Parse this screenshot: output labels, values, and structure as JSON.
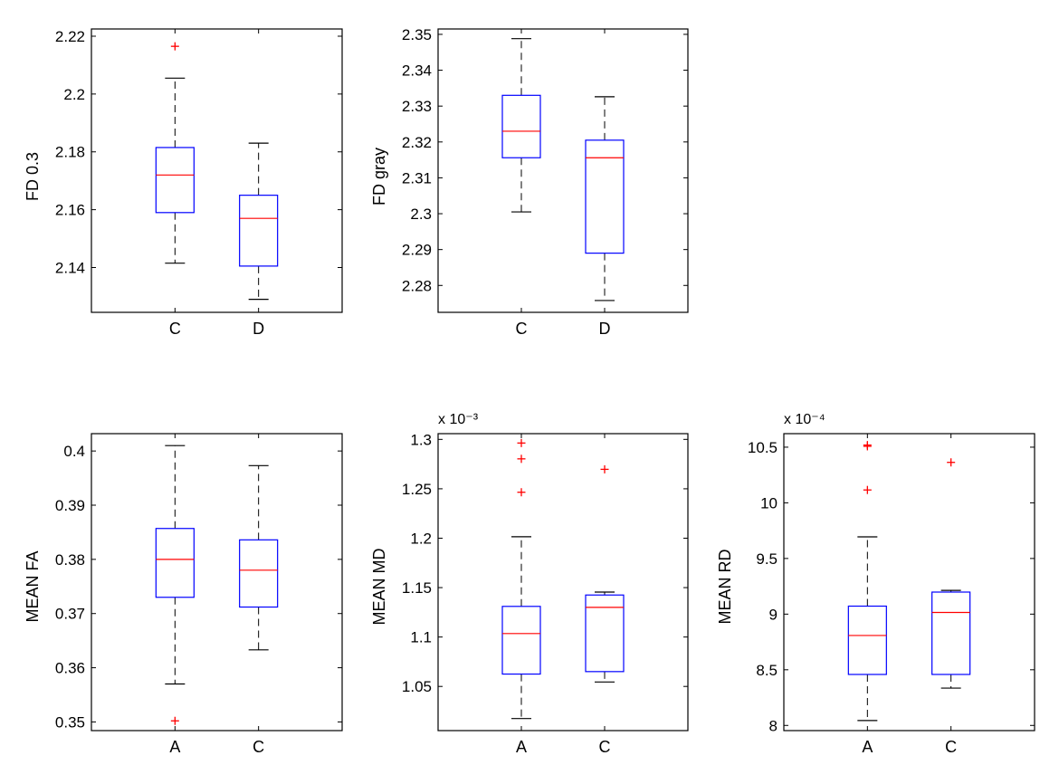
{
  "figure": {
    "background": "#ffffff"
  },
  "colors": {
    "box": "#0000ff",
    "median": "#ff0000",
    "outlier": "#ff0000",
    "whisker": "#000000",
    "axis": "#000000"
  },
  "chart_data": [
    {
      "type": "box",
      "categories": [
        "C",
        "D"
      ],
      "ylabel": "FD 0.3",
      "ylim": [
        2.1245,
        2.2225
      ],
      "yticks": [
        2.14,
        2.16,
        2.18,
        2.2,
        2.22
      ],
      "ytick_labels": [
        "2.14",
        "2.16",
        "2.18",
        "2.2",
        "2.22"
      ],
      "exponent": "",
      "boxes": [
        {
          "whisker_low": 2.1415,
          "q1": 2.159,
          "median": 2.172,
          "q3": 2.1815,
          "whisker_high": 2.2055,
          "outliers": [
            2.2165
          ]
        },
        {
          "whisker_low": 2.129,
          "q1": 2.1405,
          "median": 2.157,
          "q3": 2.165,
          "whisker_high": 2.183,
          "outliers": []
        }
      ]
    },
    {
      "type": "box",
      "categories": [
        "C",
        "D"
      ],
      "ylabel": "FD gray",
      "ylim": [
        2.2725,
        2.3515
      ],
      "yticks": [
        2.28,
        2.29,
        2.3,
        2.31,
        2.32,
        2.33,
        2.34,
        2.35
      ],
      "ytick_labels": [
        "2.28",
        "2.29",
        "2.3",
        "2.31",
        "2.32",
        "2.33",
        "2.34",
        "2.35"
      ],
      "exponent": "",
      "boxes": [
        {
          "whisker_low": 2.3005,
          "q1": 2.3156,
          "median": 2.323,
          "q3": 2.333,
          "whisker_high": 2.3488,
          "outliers": []
        },
        {
          "whisker_low": 2.2758,
          "q1": 2.289,
          "median": 2.3156,
          "q3": 2.3205,
          "whisker_high": 2.3326,
          "outliers": []
        }
      ]
    },
    {
      "type": "box",
      "categories": [
        "A",
        "C"
      ],
      "ylabel": "MEAN FA",
      "ylim": [
        0.3484,
        0.4032
      ],
      "yticks": [
        0.35,
        0.36,
        0.37,
        0.38,
        0.39,
        0.4
      ],
      "ytick_labels": [
        "0.35",
        "0.36",
        "0.37",
        "0.38",
        "0.39",
        "0.4"
      ],
      "exponent": "",
      "boxes": [
        {
          "whisker_low": 0.357,
          "q1": 0.373,
          "median": 0.38,
          "q3": 0.3857,
          "whisker_high": 0.401,
          "outliers": [
            0.3502
          ]
        },
        {
          "whisker_low": 0.3633,
          "q1": 0.3712,
          "median": 0.378,
          "q3": 0.3836,
          "whisker_high": 0.3973,
          "outliers": []
        }
      ]
    },
    {
      "type": "box",
      "categories": [
        "A",
        "C"
      ],
      "ylabel": "MEAN MD",
      "ylim": [
        1.0053,
        1.3058
      ],
      "yticks": [
        1.05,
        1.1,
        1.15,
        1.2,
        1.25,
        1.3
      ],
      "ytick_labels": [
        "1.05",
        "1.1",
        "1.15",
        "1.2",
        "1.25",
        "1.3"
      ],
      "exponent": "x 10⁻³",
      "boxes": [
        {
          "whisker_low": 1.0175,
          "q1": 1.0625,
          "median": 1.1035,
          "q3": 1.131,
          "whisker_high": 1.2015,
          "outliers": [
            1.2963,
            1.2803,
            1.2465
          ]
        },
        {
          "whisker_low": 1.0545,
          "q1": 1.065,
          "median": 1.13,
          "q3": 1.1425,
          "whisker_high": 1.1455,
          "outliers": [
            1.2697
          ]
        }
      ]
    },
    {
      "type": "box",
      "categories": [
        "A",
        "C"
      ],
      "ylabel": "MEAN RD",
      "ylim": [
        7.9535,
        10.6215
      ],
      "yticks": [
        8,
        8.5,
        9,
        9.5,
        10,
        10.5
      ],
      "ytick_labels": [
        "8",
        "8.5",
        "9",
        "9.5",
        "10",
        "10.5"
      ],
      "exponent": "x 10⁻⁴",
      "boxes": [
        {
          "whisker_low": 8.0438,
          "q1": 8.458,
          "median": 8.808,
          "q3": 9.0718,
          "whisker_high": 9.6941,
          "outliers": [
            10.5188,
            10.5079,
            10.1155
          ]
        },
        {
          "whisker_low": 8.3351,
          "q1": 8.458,
          "median": 9.0153,
          "q3": 9.198,
          "whisker_high": 9.2131,
          "outliers": [
            10.3634
          ]
        }
      ]
    }
  ]
}
